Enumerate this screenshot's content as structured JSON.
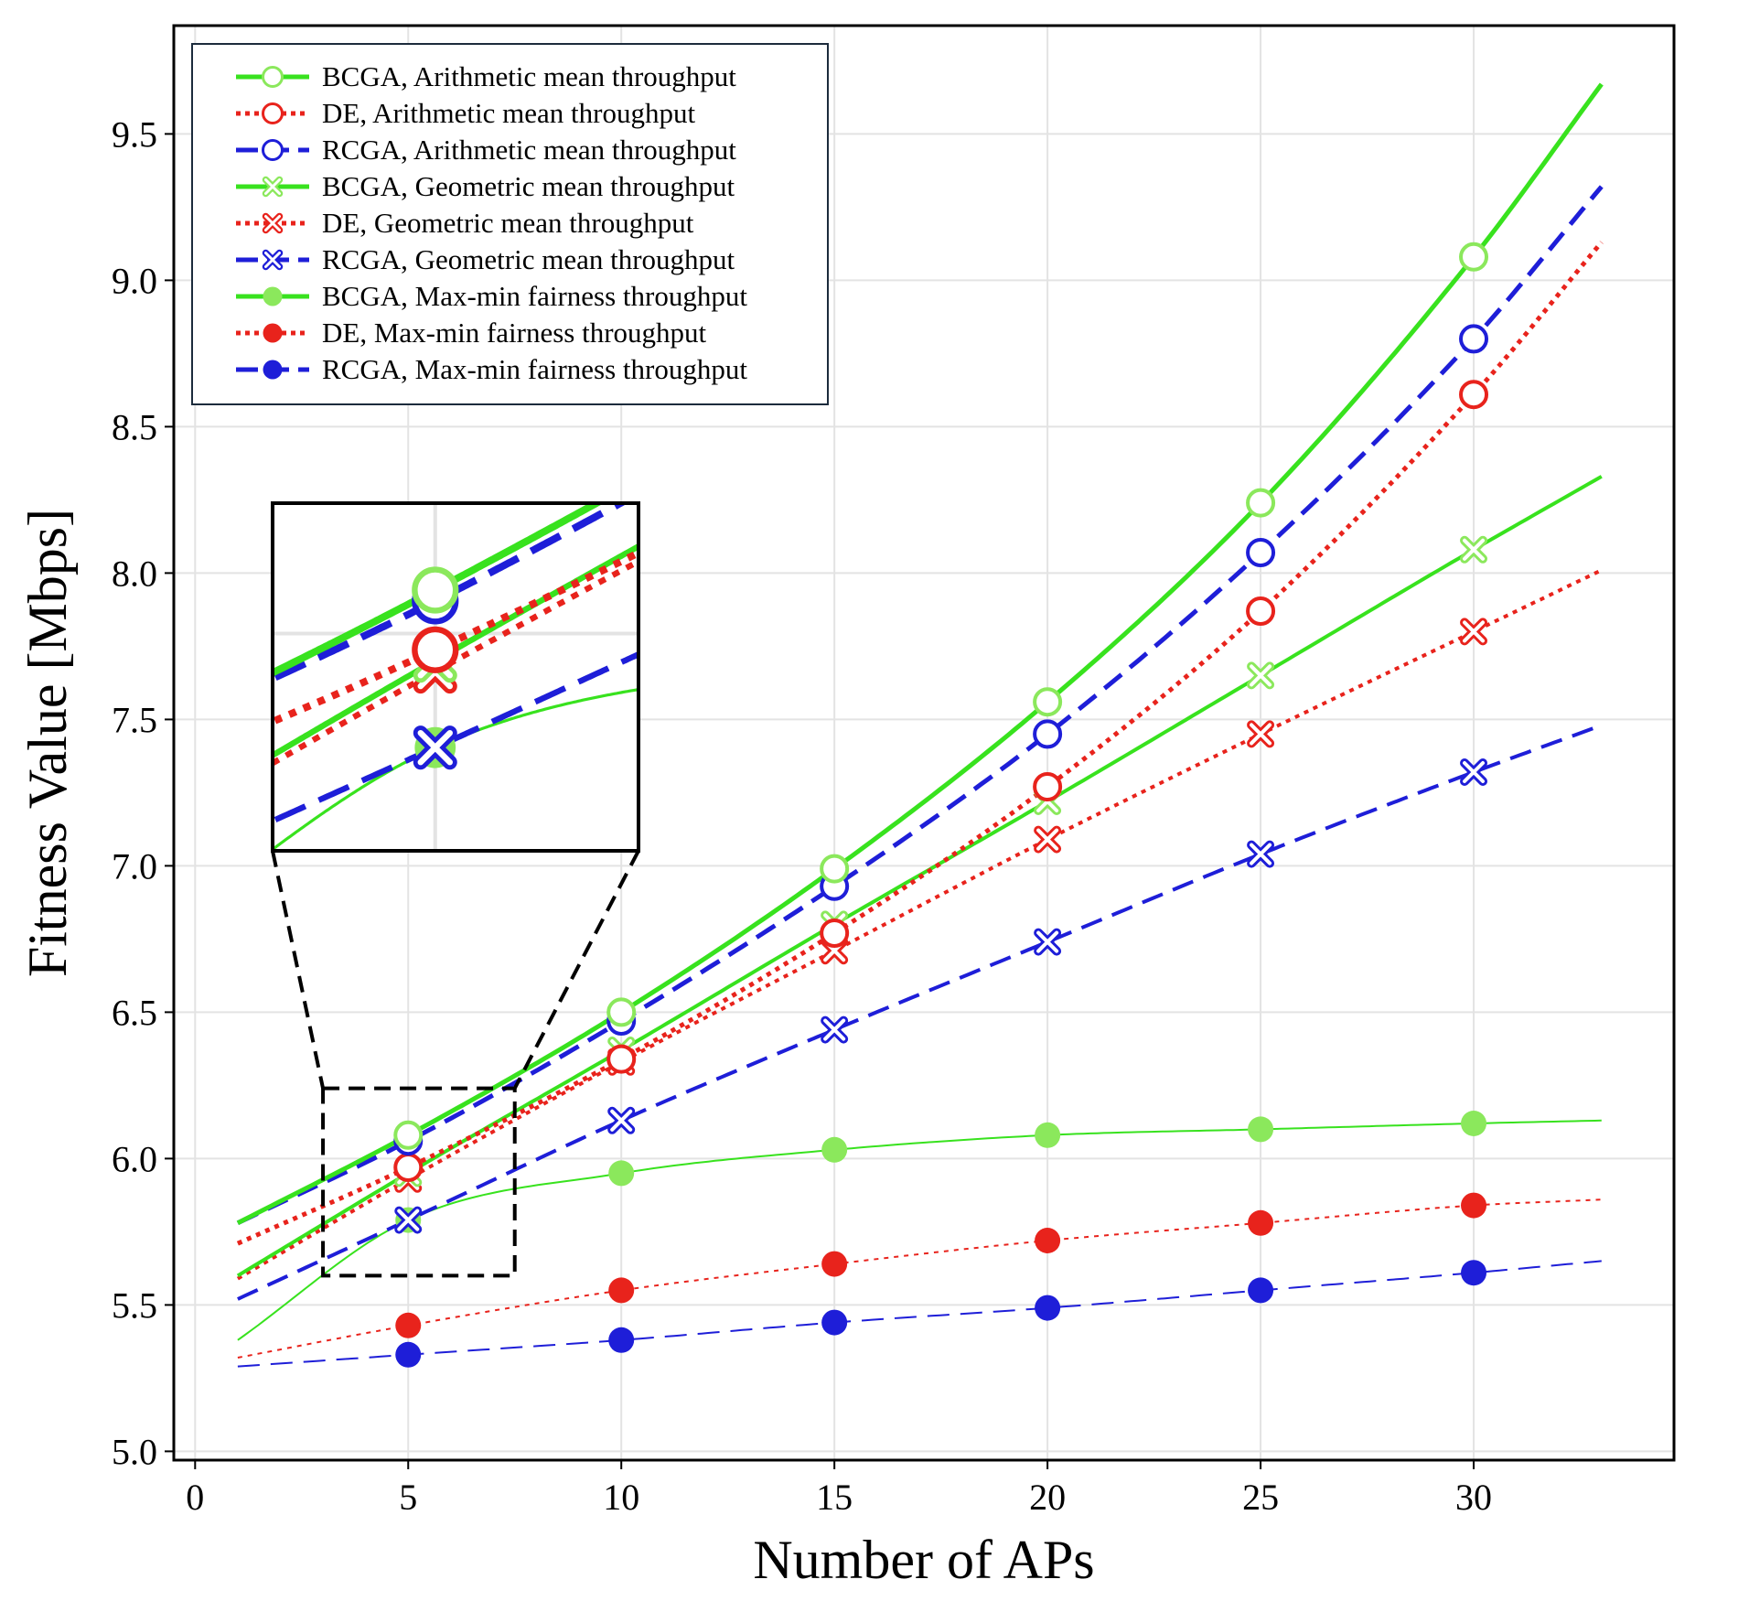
{
  "chart_data": {
    "type": "line",
    "xlabel": "Number of APs",
    "ylabel": "Fitness Value [Mbps]",
    "xlim": [
      -0.5,
      34.7
    ],
    "ylim": [
      4.97,
      9.87
    ],
    "xticks": [
      0,
      5,
      10,
      15,
      20,
      25,
      30
    ],
    "yticks": [
      5.0,
      5.5,
      6.0,
      6.5,
      7.0,
      7.5,
      8.0,
      8.5,
      9.0,
      9.5
    ],
    "xtick_labels": [
      "0",
      "5",
      "10",
      "15",
      "20",
      "25",
      "30"
    ],
    "ytick_labels": [
      "5.0",
      "5.5",
      "6.0",
      "6.5",
      "7.0",
      "7.5",
      "8.0",
      "8.5",
      "9.0",
      "9.5"
    ],
    "grid": true,
    "legend_position": "top-left",
    "markers_x": [
      5,
      10,
      15,
      20,
      25,
      30
    ],
    "curve_x_range": [
      1,
      33
    ],
    "inset_zoom": {
      "x_range": [
        3,
        7.5
      ],
      "y_range": [
        5.6,
        6.24
      ]
    },
    "colors": {
      "green": "#38e21e",
      "green_marker": "#8be85c",
      "red": "#e8231c",
      "blue": "#1e1ed8"
    },
    "series": [
      {
        "name": "BCGA, Arithmetic mean throughput",
        "color": "green",
        "line": "solid",
        "marker": "open-circle",
        "width": 5,
        "values": [
          6.08,
          6.5,
          6.99,
          7.56,
          8.24,
          9.08
        ],
        "curve_ends": [
          5.78,
          9.67
        ]
      },
      {
        "name": "DE, Arithmetic mean throughput",
        "color": "red",
        "line": "dotted",
        "marker": "open-circle",
        "width": 5,
        "values": [
          5.97,
          6.34,
          6.77,
          7.27,
          7.87,
          8.61
        ],
        "curve_ends": [
          5.71,
          9.13
        ]
      },
      {
        "name": "RCGA, Arithmetic mean throughput",
        "color": "blue",
        "line": "dashed",
        "marker": "open-circle",
        "width": 5,
        "values": [
          6.06,
          6.47,
          6.93,
          7.45,
          8.07,
          8.8
        ],
        "curve_ends": [
          5.78,
          9.32
        ]
      },
      {
        "name": "BCGA, Geometric mean throughput",
        "color": "green",
        "line": "solid",
        "marker": "open-x",
        "width": 4,
        "values": [
          5.95,
          6.37,
          6.8,
          7.22,
          7.65,
          8.08
        ],
        "curve_ends": [
          5.6,
          8.33
        ]
      },
      {
        "name": "DE, Geometric mean throughput",
        "color": "red",
        "line": "dotted",
        "marker": "open-x",
        "width": 4,
        "values": [
          5.93,
          6.33,
          6.71,
          7.09,
          7.45,
          7.8
        ],
        "curve_ends": [
          5.59,
          8.01
        ]
      },
      {
        "name": "RCGA, Geometric mean throughput",
        "color": "blue",
        "line": "dashed",
        "marker": "open-x",
        "width": 4,
        "values": [
          5.79,
          6.13,
          6.44,
          6.74,
          7.04,
          7.32
        ],
        "curve_ends": [
          5.52,
          7.48
        ]
      },
      {
        "name": "BCGA, Max-min fairness throughput",
        "color": "green",
        "line": "solid",
        "marker": "filled-circle",
        "width": 2,
        "values": [
          5.79,
          5.95,
          6.03,
          6.08,
          6.1,
          6.12
        ],
        "curve_ends": [
          5.38,
          6.13
        ]
      },
      {
        "name": "DE, Max-min fairness throughput",
        "color": "red",
        "line": "dotted",
        "marker": "filled-circle",
        "width": 2,
        "values": [
          5.43,
          5.55,
          5.64,
          5.72,
          5.78,
          5.84
        ],
        "curve_ends": [
          5.32,
          5.86
        ]
      },
      {
        "name": "RCGA, Max-min fairness throughput",
        "color": "blue",
        "line": "dashed",
        "marker": "filled-circle",
        "width": 2,
        "values": [
          5.33,
          5.38,
          5.44,
          5.49,
          5.55,
          5.61
        ],
        "curve_ends": [
          5.29,
          5.65
        ]
      }
    ]
  }
}
